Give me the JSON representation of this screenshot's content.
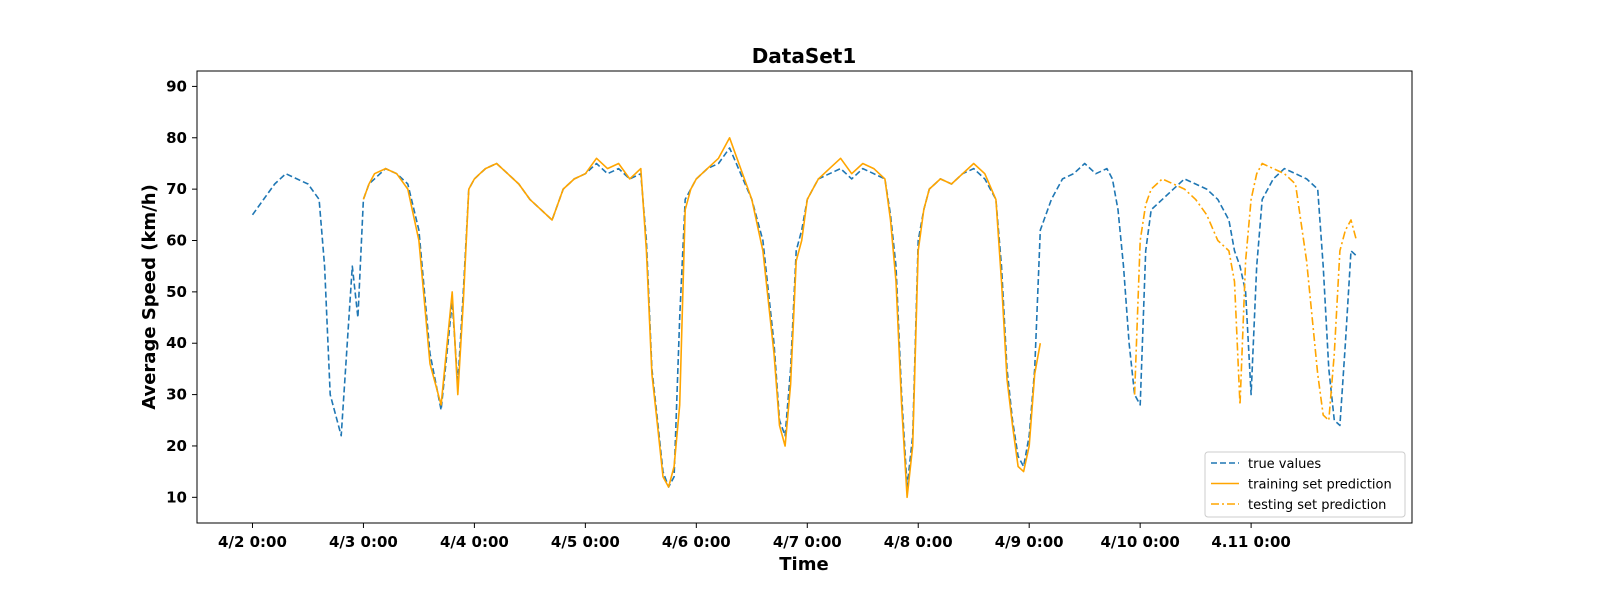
{
  "chart_data": {
    "type": "line",
    "title": "DataSet1",
    "xlabel": "Time",
    "ylabel": "Average Speed (km/h)",
    "xlim": [
      -0.5,
      10.45
    ],
    "ylim": [
      5,
      93
    ],
    "x_ticks": [
      {
        "value": 0,
        "label": "4/2 0:00"
      },
      {
        "value": 1,
        "label": "4/3 0:00"
      },
      {
        "value": 2,
        "label": "4/4 0:00"
      },
      {
        "value": 3,
        "label": "4/5 0:00"
      },
      {
        "value": 4,
        "label": "4/6 0:00"
      },
      {
        "value": 5,
        "label": "4/7 0:00"
      },
      {
        "value": 6,
        "label": "4/8 0:00"
      },
      {
        "value": 7,
        "label": "4/9 0:00"
      },
      {
        "value": 8,
        "label": "4/10 0:00"
      },
      {
        "value": 9,
        "label": "4.11 0:00"
      }
    ],
    "y_ticks": [
      10,
      20,
      30,
      40,
      50,
      60,
      70,
      80,
      90
    ],
    "legend_position": "bottom-right",
    "series": [
      {
        "name": "true values",
        "color": "#1f77b4",
        "style": "dashed",
        "x": [
          0,
          0.1,
          0.2,
          0.3,
          0.4,
          0.5,
          0.6,
          0.65,
          0.7,
          0.8,
          0.9,
          0.95,
          1,
          1.05,
          1.1,
          1.2,
          1.3,
          1.4,
          1.5,
          1.6,
          1.7,
          1.8,
          1.85,
          1.9,
          1.95,
          2,
          2.05,
          2.1,
          2.2,
          2.3,
          2.4,
          2.5,
          2.6,
          2.7,
          2.8,
          2.9,
          3,
          3.1,
          3.2,
          3.3,
          3.4,
          3.5,
          3.55,
          3.6,
          3.65,
          3.7,
          3.75,
          3.8,
          3.85,
          3.9,
          3.95,
          4,
          4.05,
          4.1,
          4.2,
          4.3,
          4.4,
          4.5,
          4.6,
          4.7,
          4.75,
          4.8,
          4.85,
          4.9,
          4.95,
          5,
          5.05,
          5.1,
          5.2,
          5.3,
          5.4,
          5.5,
          5.6,
          5.7,
          5.75,
          5.8,
          5.85,
          5.9,
          5.95,
          6,
          6.05,
          6.1,
          6.2,
          6.3,
          6.4,
          6.5,
          6.6,
          6.7,
          6.75,
          6.8,
          6.85,
          6.9,
          6.95,
          7,
          7.05,
          7.1,
          7.2,
          7.3,
          7.4,
          7.5,
          7.6,
          7.7,
          7.75,
          7.8,
          7.85,
          7.9,
          7.95,
          8,
          8.05,
          8.1,
          8.2,
          8.3,
          8.4,
          8.5,
          8.6,
          8.7,
          8.8,
          8.85,
          8.9,
          8.95,
          9,
          9.05,
          9.1,
          9.2,
          9.3,
          9.4,
          9.5,
          9.6,
          9.65,
          9.7,
          9.75,
          9.8,
          9.85,
          9.9,
          9.95
        ],
        "values": [
          65,
          68,
          71,
          73,
          72,
          71,
          68,
          55,
          30,
          22,
          55,
          45,
          68,
          71,
          72,
          74,
          73,
          71,
          62,
          38,
          27,
          48,
          32,
          50,
          70,
          72,
          73,
          74,
          75,
          73,
          71,
          68,
          66,
          64,
          70,
          72,
          73,
          75,
          73,
          74,
          72,
          73,
          60,
          35,
          25,
          15,
          12,
          14,
          45,
          68,
          70,
          72,
          73,
          74,
          75,
          78,
          73,
          68,
          60,
          40,
          25,
          22,
          35,
          58,
          62,
          68,
          70,
          72,
          73,
          74,
          72,
          74,
          73,
          72,
          65,
          55,
          30,
          12,
          22,
          60,
          66,
          70,
          72,
          71,
          73,
          74,
          72,
          68,
          55,
          35,
          25,
          18,
          16,
          22,
          35,
          62,
          68,
          72,
          73,
          75,
          73,
          74,
          72,
          66,
          55,
          40,
          30,
          28,
          58,
          66,
          68,
          70,
          72,
          71,
          70,
          68,
          64,
          58,
          55,
          50,
          30,
          55,
          68,
          72,
          74,
          73,
          72,
          70,
          55,
          35,
          25,
          24,
          40,
          58,
          57
        ]
      },
      {
        "name": "training set prediction",
        "color": "#ffa500",
        "style": "solid",
        "x": [
          1,
          1.05,
          1.1,
          1.2,
          1.3,
          1.4,
          1.5,
          1.6,
          1.7,
          1.8,
          1.85,
          1.9,
          1.95,
          2,
          2.05,
          2.1,
          2.2,
          2.3,
          2.4,
          2.5,
          2.6,
          2.7,
          2.8,
          2.9,
          3,
          3.1,
          3.2,
          3.3,
          3.4,
          3.5,
          3.55,
          3.6,
          3.65,
          3.7,
          3.75,
          3.8,
          3.85,
          3.9,
          3.95,
          4,
          4.05,
          4.1,
          4.2,
          4.3,
          4.4,
          4.5,
          4.6,
          4.7,
          4.75,
          4.8,
          4.85,
          4.9,
          4.95,
          5,
          5.05,
          5.1,
          5.2,
          5.3,
          5.4,
          5.5,
          5.6,
          5.7,
          5.75,
          5.8,
          5.85,
          5.9,
          5.95,
          6,
          6.05,
          6.1,
          6.2,
          6.3,
          6.4,
          6.5,
          6.6,
          6.7,
          6.75,
          6.8,
          6.85,
          6.9,
          6.95,
          7,
          7.05,
          7.1
        ],
        "values": [
          68,
          71,
          73,
          74,
          73,
          70,
          60,
          36,
          28,
          50,
          30,
          48,
          70,
          72,
          73,
          74,
          75,
          73,
          71,
          68,
          66,
          64,
          70,
          72,
          73,
          76,
          74,
          75,
          72,
          74,
          58,
          34,
          24,
          14,
          12,
          16,
          28,
          66,
          70,
          72,
          73,
          74,
          76,
          80,
          74,
          68,
          58,
          38,
          24,
          20,
          32,
          56,
          60,
          68,
          70,
          72,
          74,
          76,
          73,
          75,
          74,
          72,
          64,
          52,
          28,
          10,
          20,
          58,
          66,
          70,
          72,
          71,
          73,
          75,
          73,
          68,
          52,
          33,
          24,
          16,
          15,
          20,
          34,
          40
        ]
      },
      {
        "name": "testing set prediction",
        "color": "#ffa500",
        "style": "dashdot",
        "x": [
          7.95,
          8,
          8.05,
          8.1,
          8.2,
          8.3,
          8.4,
          8.5,
          8.6,
          8.7,
          8.8,
          8.85,
          8.9,
          8.95,
          9,
          9.05,
          9.1,
          9.2,
          9.3,
          9.4,
          9.5,
          9.6,
          9.65,
          9.7,
          9.75,
          9.8,
          9.85,
          9.9,
          9.95
        ],
        "values": [
          30,
          60,
          67,
          70,
          72,
          71,
          70,
          68,
          65,
          60,
          58,
          52,
          28,
          56,
          68,
          73,
          75,
          74,
          73,
          71,
          56,
          34,
          26,
          25,
          38,
          58,
          62,
          64,
          60
        ]
      }
    ]
  }
}
